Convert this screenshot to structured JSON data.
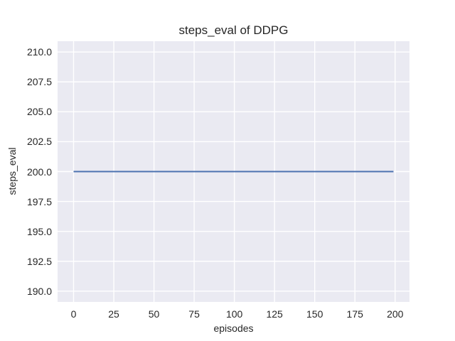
{
  "chart_data": {
    "type": "line",
    "title": "steps_eval of DDPG",
    "xlabel": "episodes",
    "ylabel": "steps_eval",
    "xlim": [
      -9.95,
      208.95
    ],
    "ylim": [
      189.1,
      210.9
    ],
    "grid": true,
    "legend_position": "none",
    "x_ticks": {
      "values": [
        0,
        25,
        50,
        75,
        100,
        125,
        150,
        175,
        200
      ],
      "labels": [
        "0",
        "25",
        "50",
        "75",
        "100",
        "125",
        "150",
        "175",
        "200"
      ]
    },
    "y_ticks": {
      "values": [
        190.0,
        192.5,
        195.0,
        197.5,
        200.0,
        202.5,
        205.0,
        207.5,
        210.0
      ],
      "labels": [
        "190.0",
        "192.5",
        "195.0",
        "197.5",
        "200.0",
        "202.5",
        "205.0",
        "207.5",
        "210.0"
      ]
    },
    "series": [
      {
        "name": "steps_eval of DDPG",
        "points": [
          [
            0,
            200
          ],
          [
            199,
            200
          ]
        ],
        "description": "constant value 200 for episodes 0 through 199",
        "color": "#4c72b0",
        "line_width": 2
      }
    ],
    "style": {
      "axes_background": "#eaeaf2",
      "grid_color": "#ffffff",
      "text_color": "#262626",
      "figure_background": "#ffffff"
    }
  }
}
